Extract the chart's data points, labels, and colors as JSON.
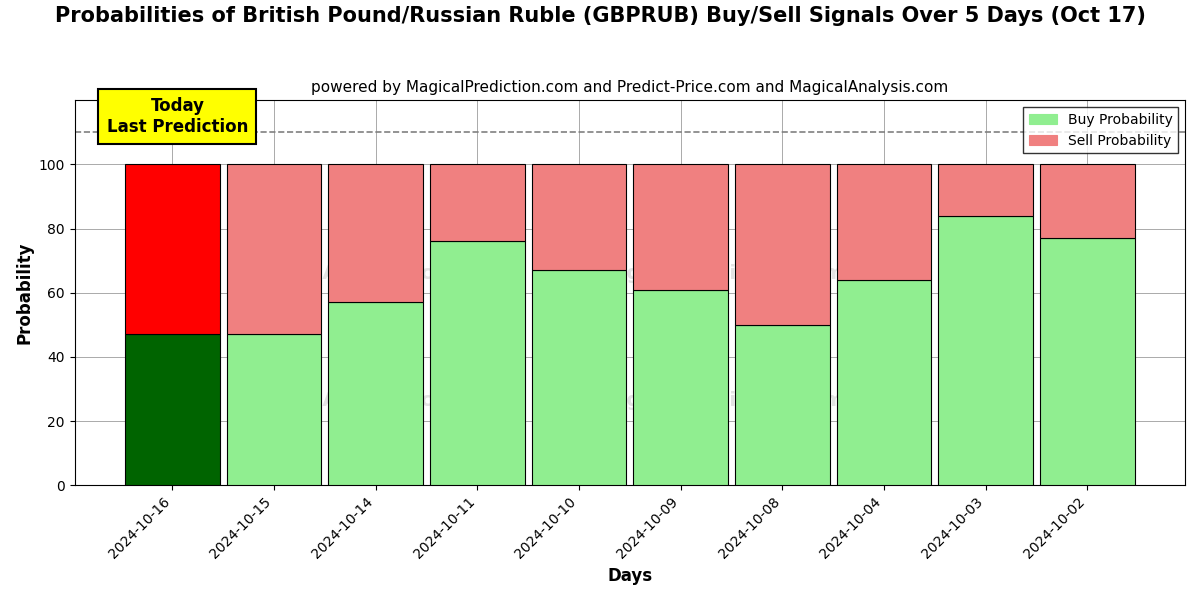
{
  "title": "Probabilities of British Pound/Russian Ruble (GBPRUB) Buy/Sell Signals Over 5 Days (Oct 17)",
  "subtitle": "powered by MagicalPrediction.com and Predict-Price.com and MagicalAnalysis.com",
  "xlabel": "Days",
  "ylabel": "Probability",
  "categories": [
    "2024-10-16",
    "2024-10-15",
    "2024-10-14",
    "2024-10-11",
    "2024-10-10",
    "2024-10-09",
    "2024-10-08",
    "2024-10-04",
    "2024-10-03",
    "2024-10-02"
  ],
  "buy_values": [
    47,
    47,
    57,
    76,
    67,
    61,
    50,
    64,
    84,
    77
  ],
  "sell_values": [
    53,
    53,
    43,
    24,
    33,
    39,
    50,
    36,
    16,
    23
  ],
  "buy_color_today": "#006400",
  "sell_color_today": "#ff0000",
  "buy_color_normal": "#90ee90",
  "sell_color_normal": "#f08080",
  "today_label": "Today\nLast Prediction",
  "today_label_bg": "#ffff00",
  "today_label_color": "#000000",
  "legend_buy": "Buy Probability",
  "legend_sell": "Sell Probability",
  "ylim": [
    0,
    120
  ],
  "yticks": [
    0,
    20,
    40,
    60,
    80,
    100
  ],
  "dashed_line_y": 110,
  "background_color": "#ffffff",
  "grid_color": "#aaaaaa",
  "title_fontsize": 15,
  "subtitle_fontsize": 11,
  "bar_width": 0.93
}
